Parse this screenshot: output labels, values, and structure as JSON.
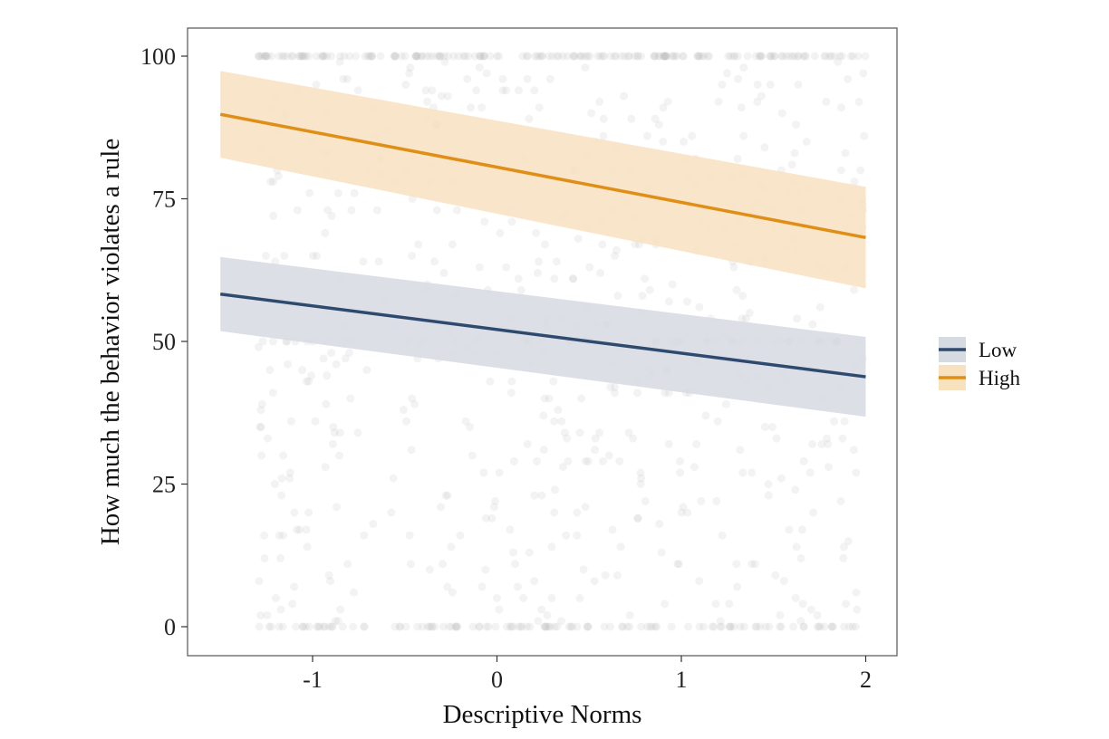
{
  "chart_data": {
    "type": "line",
    "xlabel": "Descriptive Norms",
    "ylabel": "How much the behavior violates a rule",
    "xlim": [
      -1.5,
      2.0
    ],
    "ylim": [
      0,
      100
    ],
    "x_ticks": [
      -1,
      0,
      1,
      2
    ],
    "y_ticks": [
      0,
      25,
      50,
      75,
      100
    ],
    "x_tick_labels": [
      "-1",
      "0",
      "1",
      "2"
    ],
    "y_tick_labels": [
      "0",
      "25",
      "50",
      "75",
      "100"
    ],
    "grid": false,
    "legend_position": "right",
    "series": [
      {
        "name": "Low",
        "color": "#2e4a6e",
        "band_color": "#d6dbe2",
        "x": [
          -1.5,
          2.0
        ],
        "y": [
          58.3,
          43.8
        ],
        "ci_lower": [
          51.8,
          36.8
        ],
        "ci_upper": [
          64.8,
          50.8
        ]
      },
      {
        "name": "High",
        "color": "#e08f16",
        "band_color": "#f8e1bf",
        "x": [
          -1.5,
          2.0
        ],
        "y": [
          89.8,
          68.2
        ],
        "ci_lower": [
          82.2,
          59.3
        ],
        "ci_upper": [
          97.4,
          77.1
        ]
      }
    ],
    "raw_points_note_color": "#bcbcbc"
  }
}
